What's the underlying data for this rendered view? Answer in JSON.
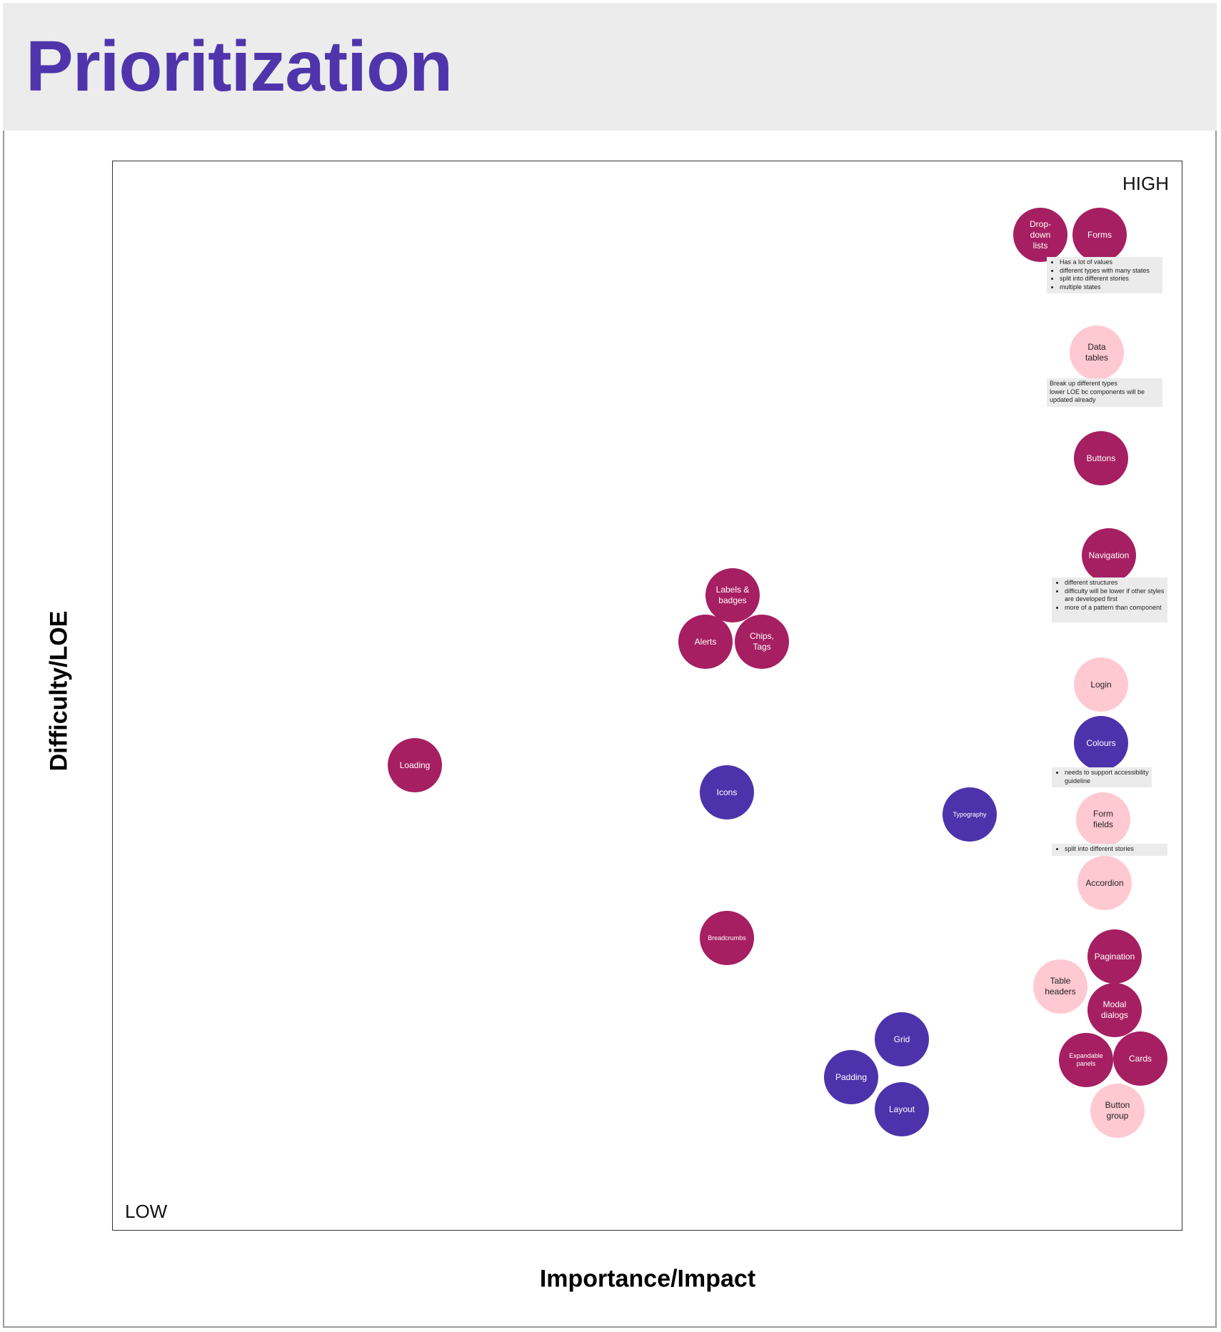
{
  "title": "Prioritization",
  "axes": {
    "y_label": "Difficulty/LOE",
    "x_label": "Importance/Impact",
    "high_label": "HIGH",
    "low_label": "LOW"
  },
  "colors": {
    "title": "#4f35ac",
    "high_priority_bubble": "#a61f62",
    "low_priority_bubble": "#ffc9d1",
    "foundation_bubble": "#4d33ab",
    "note_background": "#ebebeb",
    "header_background": "#ececec"
  },
  "bubbles": [
    {
      "label": "Drop-\ndown\nlists",
      "color": "high"
    },
    {
      "label": "Forms",
      "color": "high"
    },
    {
      "label": "Data\ntables",
      "color": "low"
    },
    {
      "label": "Buttons",
      "color": "high"
    },
    {
      "label": "Navigation",
      "color": "high"
    },
    {
      "label": "Labels &\nbadges",
      "color": "high"
    },
    {
      "label": "Alerts",
      "color": "high"
    },
    {
      "label": "Chips,\nTags",
      "color": "high"
    },
    {
      "label": "Login",
      "color": "low"
    },
    {
      "label": "Colours",
      "color": "foundation"
    },
    {
      "label": "Loading",
      "color": "high"
    },
    {
      "label": "Icons",
      "color": "foundation"
    },
    {
      "label": "Typography",
      "color": "foundation"
    },
    {
      "label": "Form\nfields",
      "color": "low"
    },
    {
      "label": "Accordion",
      "color": "low"
    },
    {
      "label": "Breadcrumbs",
      "color": "high"
    },
    {
      "label": "Pagination",
      "color": "high"
    },
    {
      "label": "Table\nheaders",
      "color": "low"
    },
    {
      "label": "Modal\ndialogs",
      "color": "high"
    },
    {
      "label": "Grid",
      "color": "foundation"
    },
    {
      "label": "Padding",
      "color": "foundation"
    },
    {
      "label": "Expandable\npanels",
      "color": "high"
    },
    {
      "label": "Cards",
      "color": "high"
    },
    {
      "label": "Layout",
      "color": "foundation"
    },
    {
      "label": "Button\ngroup",
      "color": "low"
    }
  ],
  "notes": {
    "forms": [
      "Has a lot of values",
      "different types with many states",
      "split into different stories",
      "multiple states"
    ],
    "data_tables": [
      "Break up different types",
      "lower LOE bc components will be",
      "updated already"
    ],
    "navigation": [
      "different structures",
      "difficulty will be lower if other styles are developed first",
      "more of a pattern than component"
    ],
    "colours": [
      "needs to support accessibility guideline"
    ],
    "form_fields": [
      "split into different stories"
    ]
  }
}
